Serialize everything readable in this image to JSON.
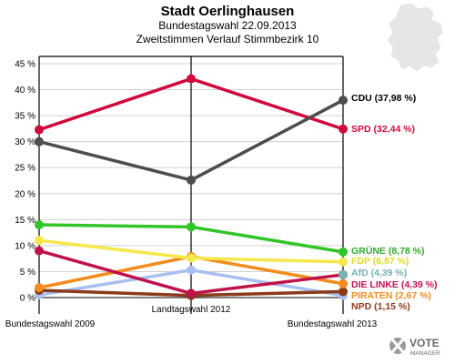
{
  "header": {
    "title": "Stadt Oerlinghausen",
    "subtitle1": "Bundestagswahl 22.09.2013",
    "subtitle2": "Zweitstimmen Verlauf Stimmbezirk 10"
  },
  "logo": {
    "word1": "VOTE",
    "word2": "MANAGER"
  },
  "chart_data": {
    "type": "line",
    "title": "Stadt Oerlinghausen",
    "subtitle": "Bundestagswahl 22.09.2013 / Zweitstimmen Verlauf Stimmbezirk 10",
    "categories": [
      "Bundestagswahl 2009",
      "Landtagswahl 2012",
      "Bundestagswahl 2013"
    ],
    "ylim": [
      0,
      45
    ],
    "yticks": [
      "0 %",
      "5 %",
      "10 %",
      "15 %",
      "20 %",
      "25 %",
      "30 %",
      "35 %",
      "40 %",
      "45 %"
    ],
    "ytick_values": [
      0,
      5,
      10,
      15,
      20,
      25,
      30,
      35,
      40,
      45
    ],
    "grid": true,
    "series": [
      {
        "name": "CDU",
        "end_label": "CDU (37,98 %)",
        "color": "#4d4d4d",
        "label_color": "#000000",
        "values": [
          30.0,
          22.6,
          37.98
        ]
      },
      {
        "name": "SPD",
        "end_label": "SPD (32,44 %)",
        "color": "#d10a3d",
        "label_color": "#d10a3d",
        "values": [
          32.3,
          42.1,
          32.44
        ]
      },
      {
        "name": "GRÜNE",
        "end_label": "GRÜNE (8,78 %)",
        "color": "#33c42a",
        "label_color": "#2fa82a",
        "values": [
          14.0,
          13.6,
          8.78
        ]
      },
      {
        "name": "FDP",
        "end_label": "FDP (6,87 %)",
        "color": "#f5e84b",
        "label_color": "#e6d82a",
        "values": [
          11.0,
          7.6,
          6.87
        ]
      },
      {
        "name": "AfD",
        "end_label": "AfD (4,39 %)",
        "color": "#73b3b0",
        "label_color": "#73b3b0",
        "values": [
          null,
          null,
          4.39
        ]
      },
      {
        "name": "DIE LINKE",
        "end_label": "DIE LINKE (4,39 %)",
        "color": "#c0124a",
        "label_color": "#c0124a",
        "values": [
          9.0,
          0.8,
          4.39
        ]
      },
      {
        "name": "PIRATEN",
        "end_label": "PIRATEN (2,67 %)",
        "color": "#f28c1e",
        "label_color": "#f28c1e",
        "values": [
          1.9,
          7.9,
          2.67
        ]
      },
      {
        "name": "NPD",
        "end_label": "NPD (1,15 %)",
        "color": "#8b3a1a",
        "label_color": "#8b3a1a",
        "values": [
          1.4,
          0.4,
          1.15
        ]
      },
      {
        "name": "Sonstige",
        "end_label": "",
        "color": "#a9bff0",
        "label_color": "#a9bff0",
        "values": [
          0.5,
          5.3,
          0.4
        ]
      }
    ]
  }
}
